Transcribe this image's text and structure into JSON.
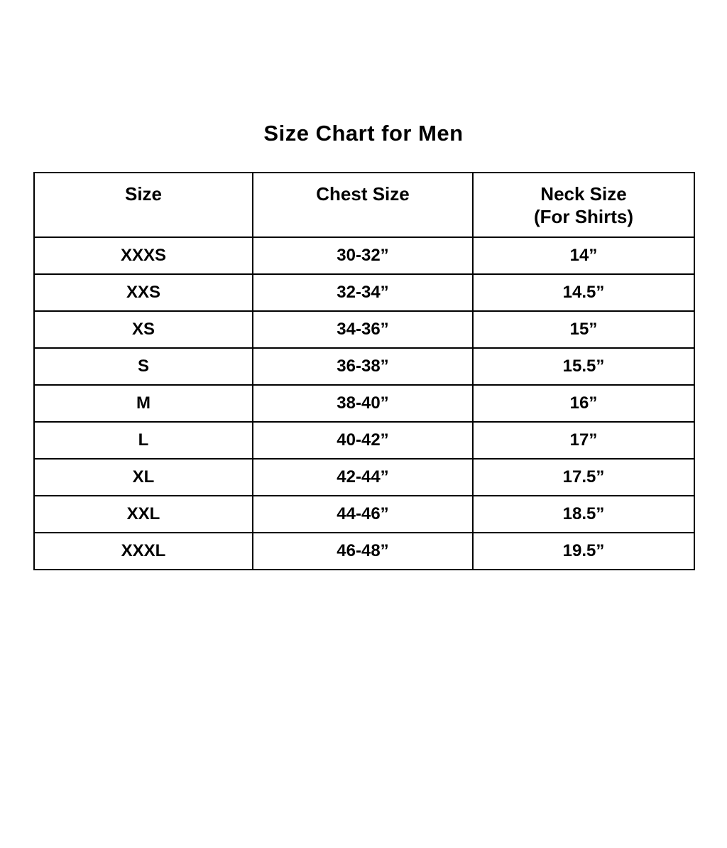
{
  "title": "Size Chart for Men",
  "colors": {
    "background": "#ffffff",
    "text": "#000000",
    "border": "#000000"
  },
  "table": {
    "columns": [
      "Size",
      "Chest Size",
      "Neck Size\n(For Shirts)"
    ],
    "rows": [
      [
        "XXXS",
        "30-32”",
        "14”"
      ],
      [
        "XXS",
        "32-34”",
        "14.5”"
      ],
      [
        "XS",
        "34-36”",
        "15”"
      ],
      [
        "S",
        "36-38”",
        "15.5”"
      ],
      [
        "M",
        "38-40”",
        "16”"
      ],
      [
        "L",
        "40-42”",
        "17”"
      ],
      [
        "XL",
        "42-44”",
        "17.5”"
      ],
      [
        "XXL",
        "44-46”",
        "18.5”"
      ],
      [
        "XXXL",
        "46-48”",
        "19.5”"
      ]
    ]
  }
}
